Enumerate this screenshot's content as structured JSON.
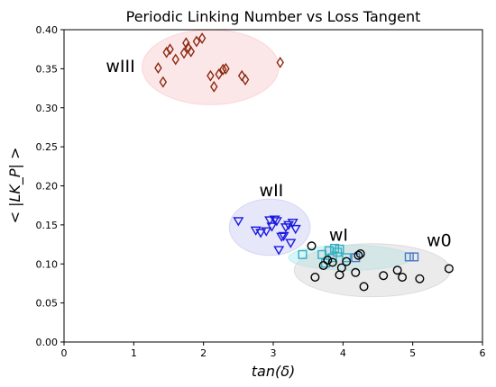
{
  "chart_data": {
    "type": "scatter",
    "title": "Periodic Linking Number vs Loss Tangent",
    "xlabel": "tan(δ)",
    "ylabel": "< |LK_P| >",
    "xlim": [
      0,
      6
    ],
    "ylim": [
      0,
      0.4
    ],
    "xticks": [
      "0",
      "1",
      "2",
      "3",
      "4",
      "5",
      "6"
    ],
    "yticks": [
      "0.00",
      "0.05",
      "0.10",
      "0.15",
      "0.20",
      "0.25",
      "0.30",
      "0.35",
      "0.40"
    ],
    "grid": false,
    "regions": [
      {
        "label": "wIII",
        "center": [
          2.1,
          0.352
        ],
        "semi_axes": [
          0.98,
          0.048
        ],
        "color": "#f9c9cc",
        "label_at": [
          0.6,
          0.352
        ]
      },
      {
        "label": "wII",
        "center": [
          2.95,
          0.147
        ],
        "semi_axes": [
          0.58,
          0.036
        ],
        "color": "#c9c9f3",
        "label_at": [
          2.8,
          0.193
        ]
      },
      {
        "label": "wI",
        "center": [
          4.1,
          0.108
        ],
        "semi_axes": [
          0.88,
          0.016
        ],
        "color": "#a8ecee",
        "label_at": [
          3.8,
          0.136
        ]
      },
      {
        "label": "w0",
        "center": [
          4.42,
          0.092
        ],
        "semi_axes": [
          1.12,
          0.034
        ],
        "color": "#d3d3d3",
        "label_at": [
          5.2,
          0.129
        ]
      }
    ],
    "series": [
      {
        "marker": "diamond",
        "color": "#8b2a12",
        "x": [
          1.35,
          1.42,
          1.47,
          1.52,
          1.6,
          1.72,
          1.75,
          1.78,
          1.82,
          1.9,
          1.98,
          2.1,
          2.15,
          2.22,
          2.28,
          2.32,
          2.55,
          2.6,
          3.1
        ],
        "y": [
          0.351,
          0.333,
          0.371,
          0.375,
          0.362,
          0.37,
          0.383,
          0.377,
          0.372,
          0.385,
          0.389,
          0.341,
          0.327,
          0.343,
          0.349,
          0.35,
          0.341,
          0.336,
          0.358
        ]
      },
      {
        "marker": "triangle-down",
        "color": "#1a1ae0",
        "x": [
          2.5,
          2.75,
          2.82,
          2.9,
          2.95,
          2.98,
          3.02,
          3.05,
          3.08,
          3.12,
          3.18,
          3.22,
          3.25,
          3.28,
          3.32,
          3.15
        ],
        "y": [
          0.155,
          0.143,
          0.14,
          0.142,
          0.156,
          0.148,
          0.157,
          0.155,
          0.118,
          0.135,
          0.147,
          0.15,
          0.127,
          0.153,
          0.145,
          0.136
        ]
      },
      {
        "marker": "square",
        "color": "#31b0c4",
        "x": [
          3.42,
          3.7,
          3.75,
          3.8,
          3.85,
          3.88,
          3.92,
          3.95,
          4.05
        ],
        "y": [
          0.112,
          0.112,
          0.101,
          0.117,
          0.108,
          0.12,
          0.115,
          0.119,
          0.108
        ]
      },
      {
        "marker": "square",
        "color": "#4a78c8",
        "x": [
          4.18,
          4.95,
          5.02
        ],
        "y": [
          0.108,
          0.109,
          0.109
        ]
      },
      {
        "marker": "circle",
        "color": "#000000",
        "x": [
          3.55,
          3.6,
          3.72,
          3.78,
          3.85,
          3.95,
          3.98,
          4.05,
          4.18,
          4.22,
          4.25,
          4.3,
          4.58,
          4.78,
          4.85,
          5.1,
          5.52
        ],
        "y": [
          0.123,
          0.083,
          0.098,
          0.105,
          0.102,
          0.086,
          0.095,
          0.103,
          0.089,
          0.111,
          0.113,
          0.071,
          0.085,
          0.092,
          0.083,
          0.081,
          0.094
        ]
      }
    ]
  }
}
